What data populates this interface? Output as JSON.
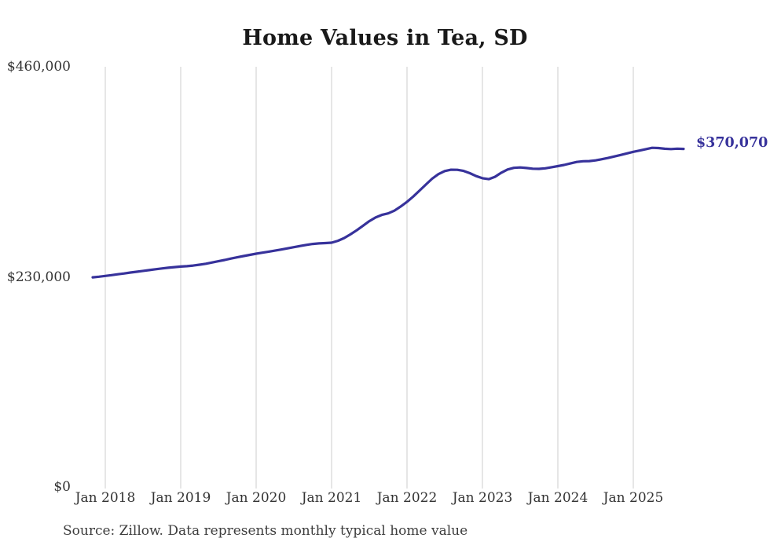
{
  "chart_data": {
    "type": "line",
    "title": "Home Values in Tea, SD",
    "series_name": "Monthly typical home value",
    "source_note": "Source: Zillow. Data represents monthly typical home value",
    "end_label": "$370,070",
    "final_value": 370070,
    "frequency": "monthly",
    "start_month": "2017-11",
    "end_month": "2025-09",
    "values": [
      229500,
      230200,
      231000,
      231900,
      232800,
      233700,
      234700,
      235600,
      236500,
      237400,
      238300,
      239200,
      240000,
      240700,
      241300,
      241700,
      242400,
      243300,
      244400,
      245700,
      247100,
      248500,
      250000,
      251400,
      252800,
      254100,
      255400,
      256500,
      257600,
      258700,
      259900,
      261200,
      262500,
      263800,
      265000,
      266000,
      266600,
      267000,
      267400,
      269500,
      272500,
      276500,
      281000,
      286000,
      291000,
      295000,
      297800,
      299500,
      302500,
      307000,
      312100,
      318000,
      324500,
      331000,
      337500,
      342500,
      345800,
      347300,
      347200,
      346000,
      343500,
      340300,
      338000,
      337000,
      339500,
      344000,
      347500,
      349300,
      349800,
      349200,
      348400,
      348200,
      348800,
      350000,
      351200,
      352500,
      354200,
      355800,
      356600,
      356700,
      357500,
      358800,
      360200,
      361800,
      363400,
      365200,
      366900,
      368300,
      369800,
      371300,
      371000,
      370200,
      369900,
      370300,
      370070
    ],
    "x_ticks": [
      {
        "month": "2018-01",
        "label": "Jan 2018"
      },
      {
        "month": "2019-01",
        "label": "Jan 2019"
      },
      {
        "month": "2020-01",
        "label": "Jan 2020"
      },
      {
        "month": "2021-01",
        "label": "Jan 2021"
      },
      {
        "month": "2022-01",
        "label": "Jan 2022"
      },
      {
        "month": "2023-01",
        "label": "Jan 2023"
      },
      {
        "month": "2024-01",
        "label": "Jan 2024"
      },
      {
        "month": "2025-01",
        "label": "Jan 2025"
      }
    ],
    "y_axis": {
      "min": 0,
      "max": 460000,
      "ticks": [
        {
          "value": 460000,
          "label": "$460,000"
        },
        {
          "value": 230000,
          "label": "$230,000"
        },
        {
          "value": 0,
          "label": "$0"
        }
      ]
    },
    "grid": "vertical-only",
    "legend": "none",
    "colors": {
      "line": "#37329b",
      "end_label": "#37329b",
      "grid": "#cccccc",
      "title": "#1a1a1a",
      "tick_label": "#333333",
      "source": "#3d3d3d"
    }
  }
}
